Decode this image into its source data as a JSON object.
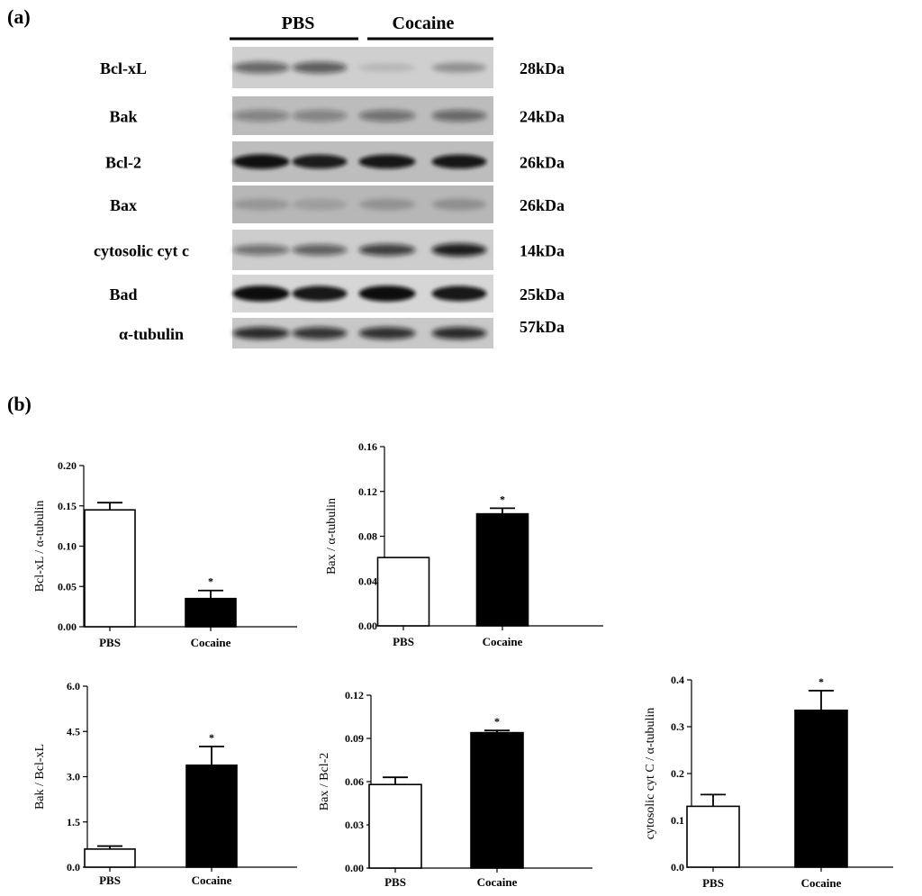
{
  "panel_a": {
    "label": "(a)",
    "groups": [
      "PBS",
      "Cocaine"
    ],
    "rows": [
      {
        "protein": "Bcl-xL",
        "size": "28kDa"
      },
      {
        "protein": "Bak",
        "size": "24kDa"
      },
      {
        "protein": "Bcl-2",
        "size": "26kDa"
      },
      {
        "protein": "Bax",
        "size": "26kDa"
      },
      {
        "protein": "cytosolic cyt c",
        "size": "14kDa"
      },
      {
        "protein": "Bad",
        "size": "25kDa"
      },
      {
        "protein": "α-tubulin",
        "size": "57kDa"
      }
    ]
  },
  "panel_b": {
    "label": "(b)"
  },
  "chart_data": [
    {
      "type": "bar",
      "categories": [
        "PBS",
        "Cocaine"
      ],
      "values": [
        0.145,
        0.035
      ],
      "errors": [
        0.009,
        0.01
      ],
      "significance": [
        "",
        "*"
      ],
      "bar_fill": [
        "#ffffff",
        "#000000"
      ],
      "ylabel": "Bcl-xL / α-tubulin",
      "ylim": [
        0,
        0.2
      ],
      "yticks": [
        "0.00",
        "0.05",
        "0.10",
        "0.15",
        "0.20"
      ]
    },
    {
      "type": "bar",
      "categories": [
        "PBS",
        "Cocaine"
      ],
      "values": [
        0.061,
        0.1
      ],
      "errors": [
        0.0,
        0.005
      ],
      "significance": [
        "",
        "*"
      ],
      "bar_fill": [
        "#ffffff",
        "#000000"
      ],
      "ylabel": "Bax / α-tubulin",
      "ylim": [
        0,
        0.16
      ],
      "yticks": [
        "0.00",
        "0.04",
        "0.08",
        "0.12",
        "0.16"
      ]
    },
    {
      "type": "bar",
      "categories": [
        "PBS",
        "Cocaine"
      ],
      "values": [
        0.6,
        3.38
      ],
      "errors": [
        0.1,
        0.62
      ],
      "significance": [
        "",
        "*"
      ],
      "bar_fill": [
        "#ffffff",
        "#000000"
      ],
      "ylabel": "Bak / Bcl-xL",
      "ylim": [
        0,
        6.0
      ],
      "yticks": [
        "0.0",
        "1.5",
        "3.0",
        "4.5",
        "6.0"
      ]
    },
    {
      "type": "bar",
      "categories": [
        "PBS",
        "Cocaine"
      ],
      "values": [
        0.058,
        0.094
      ],
      "errors": [
        0.005,
        0.0015
      ],
      "significance": [
        "",
        "*"
      ],
      "bar_fill": [
        "#ffffff",
        "#000000"
      ],
      "ylabel": "Bax / Bcl-2",
      "ylim": [
        0,
        0.12
      ],
      "yticks": [
        "0.00",
        "0.03",
        "0.06",
        "0.09",
        "0.12"
      ]
    },
    {
      "type": "bar",
      "categories": [
        "PBS",
        "Cocaine"
      ],
      "values": [
        0.13,
        0.335
      ],
      "errors": [
        0.025,
        0.042
      ],
      "significance": [
        "",
        "*"
      ],
      "bar_fill": [
        "#ffffff",
        "#000000"
      ],
      "ylabel": "cytosolic cyt C /  α-tubulin",
      "ylim": [
        0,
        0.4
      ],
      "yticks": [
        "0.0",
        "0.1",
        "0.2",
        "0.3",
        "0.4"
      ]
    }
  ]
}
